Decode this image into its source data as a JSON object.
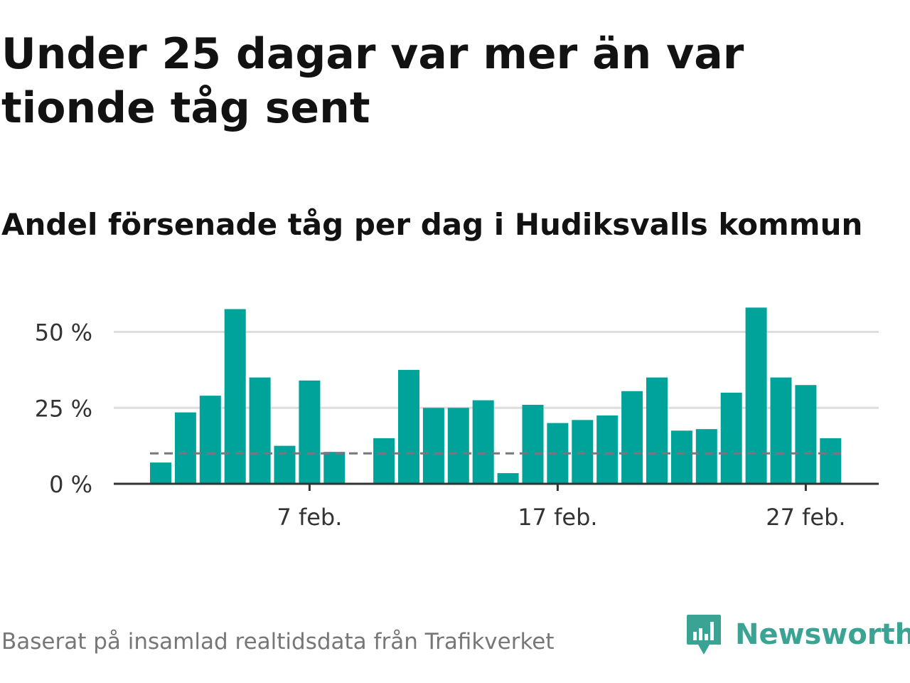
{
  "title": "Under 25 dagar var mer än var tionde tåg sent",
  "subtitle": "Andel försenade tåg per dag i Hudiksvalls kommun",
  "source": "Baserat på insamlad realtidsdata från Trafikverket",
  "brand": {
    "name": "Newsworthy",
    "icon": "newsworthy-logo-icon",
    "color": "#3aa394"
  },
  "colors": {
    "bar": "#00a39a",
    "reference_line": "#77777f",
    "grid": "#dddddd",
    "axis": "#333333"
  },
  "chart_data": {
    "type": "bar",
    "x_dates": [
      "2022-02-01",
      "2022-02-02",
      "2022-02-03",
      "2022-02-04",
      "2022-02-05",
      "2022-02-06",
      "2022-02-07",
      "2022-02-08",
      "2022-02-09",
      "2022-02-10",
      "2022-02-11",
      "2022-02-12",
      "2022-02-13",
      "2022-02-14",
      "2022-02-15",
      "2022-02-16",
      "2022-02-17",
      "2022-02-18",
      "2022-02-19",
      "2022-02-20",
      "2022-02-21",
      "2022-02-22",
      "2022-02-23",
      "2022-02-24",
      "2022-02-25",
      "2022-02-26",
      "2022-02-27",
      "2022-02-28"
    ],
    "values": [
      7,
      23.5,
      29,
      57.5,
      35,
      12.5,
      34,
      10.5,
      null,
      15,
      37.5,
      25,
      25,
      27.5,
      3.5,
      26,
      20,
      21,
      22.5,
      30.5,
      35,
      17.5,
      18,
      30,
      58,
      35,
      32.5,
      15
    ],
    "reference_line": {
      "value": 10
    },
    "ylim": [
      0,
      60
    ],
    "yticks": [
      {
        "value": 0,
        "label": "0 %"
      },
      {
        "value": 25,
        "label": "25 %"
      },
      {
        "value": 50,
        "label": "50 %"
      }
    ],
    "xticks": [
      {
        "date": "2022-02-07",
        "label": "7 feb."
      },
      {
        "date": "2022-02-17",
        "label": "17 feb."
      },
      {
        "date": "2022-02-27",
        "label": "27 feb."
      }
    ],
    "grid": true
  }
}
